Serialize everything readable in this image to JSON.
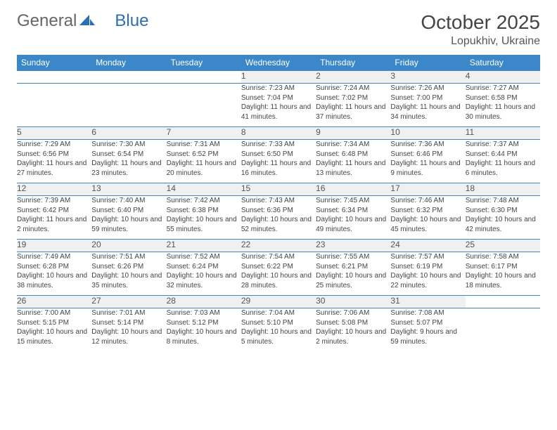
{
  "logo": {
    "part1": "General",
    "part2": "Blue"
  },
  "header": {
    "month_title": "October 2025",
    "location": "Lopukhiv, Ukraine"
  },
  "colors": {
    "header_bg": "#3b87c8",
    "header_text": "#ffffff",
    "daynum_bg": "#f0f0f0",
    "rule": "#3b87c8",
    "body_text": "#444444",
    "logo_blue": "#2a6fb5"
  },
  "fonts": {
    "title_size_pt": 21,
    "location_size_pt": 12,
    "dayheader_size_pt": 9,
    "daynum_size_pt": 9,
    "detail_size_pt": 7.5
  },
  "calendar": {
    "day_headers": [
      "Sunday",
      "Monday",
      "Tuesday",
      "Wednesday",
      "Thursday",
      "Friday",
      "Saturday"
    ],
    "weeks": [
      [
        null,
        null,
        null,
        {
          "n": "1",
          "sunrise": "7:23 AM",
          "sunset": "7:04 PM",
          "day_h": 11,
          "day_m": 41
        },
        {
          "n": "2",
          "sunrise": "7:24 AM",
          "sunset": "7:02 PM",
          "day_h": 11,
          "day_m": 37
        },
        {
          "n": "3",
          "sunrise": "7:26 AM",
          "sunset": "7:00 PM",
          "day_h": 11,
          "day_m": 34
        },
        {
          "n": "4",
          "sunrise": "7:27 AM",
          "sunset": "6:58 PM",
          "day_h": 11,
          "day_m": 30
        }
      ],
      [
        {
          "n": "5",
          "sunrise": "7:29 AM",
          "sunset": "6:56 PM",
          "day_h": 11,
          "day_m": 27
        },
        {
          "n": "6",
          "sunrise": "7:30 AM",
          "sunset": "6:54 PM",
          "day_h": 11,
          "day_m": 23
        },
        {
          "n": "7",
          "sunrise": "7:31 AM",
          "sunset": "6:52 PM",
          "day_h": 11,
          "day_m": 20
        },
        {
          "n": "8",
          "sunrise": "7:33 AM",
          "sunset": "6:50 PM",
          "day_h": 11,
          "day_m": 16
        },
        {
          "n": "9",
          "sunrise": "7:34 AM",
          "sunset": "6:48 PM",
          "day_h": 11,
          "day_m": 13
        },
        {
          "n": "10",
          "sunrise": "7:36 AM",
          "sunset": "6:46 PM",
          "day_h": 11,
          "day_m": 9
        },
        {
          "n": "11",
          "sunrise": "7:37 AM",
          "sunset": "6:44 PM",
          "day_h": 11,
          "day_m": 6
        }
      ],
      [
        {
          "n": "12",
          "sunrise": "7:39 AM",
          "sunset": "6:42 PM",
          "day_h": 11,
          "day_m": 2
        },
        {
          "n": "13",
          "sunrise": "7:40 AM",
          "sunset": "6:40 PM",
          "day_h": 10,
          "day_m": 59
        },
        {
          "n": "14",
          "sunrise": "7:42 AM",
          "sunset": "6:38 PM",
          "day_h": 10,
          "day_m": 55
        },
        {
          "n": "15",
          "sunrise": "7:43 AM",
          "sunset": "6:36 PM",
          "day_h": 10,
          "day_m": 52
        },
        {
          "n": "16",
          "sunrise": "7:45 AM",
          "sunset": "6:34 PM",
          "day_h": 10,
          "day_m": 49
        },
        {
          "n": "17",
          "sunrise": "7:46 AM",
          "sunset": "6:32 PM",
          "day_h": 10,
          "day_m": 45
        },
        {
          "n": "18",
          "sunrise": "7:48 AM",
          "sunset": "6:30 PM",
          "day_h": 10,
          "day_m": 42
        }
      ],
      [
        {
          "n": "19",
          "sunrise": "7:49 AM",
          "sunset": "6:28 PM",
          "day_h": 10,
          "day_m": 38
        },
        {
          "n": "20",
          "sunrise": "7:51 AM",
          "sunset": "6:26 PM",
          "day_h": 10,
          "day_m": 35
        },
        {
          "n": "21",
          "sunrise": "7:52 AM",
          "sunset": "6:24 PM",
          "day_h": 10,
          "day_m": 32
        },
        {
          "n": "22",
          "sunrise": "7:54 AM",
          "sunset": "6:22 PM",
          "day_h": 10,
          "day_m": 28
        },
        {
          "n": "23",
          "sunrise": "7:55 AM",
          "sunset": "6:21 PM",
          "day_h": 10,
          "day_m": 25
        },
        {
          "n": "24",
          "sunrise": "7:57 AM",
          "sunset": "6:19 PM",
          "day_h": 10,
          "day_m": 22
        },
        {
          "n": "25",
          "sunrise": "7:58 AM",
          "sunset": "6:17 PM",
          "day_h": 10,
          "day_m": 18
        }
      ],
      [
        {
          "n": "26",
          "sunrise": "7:00 AM",
          "sunset": "5:15 PM",
          "day_h": 10,
          "day_m": 15
        },
        {
          "n": "27",
          "sunrise": "7:01 AM",
          "sunset": "5:14 PM",
          "day_h": 10,
          "day_m": 12
        },
        {
          "n": "28",
          "sunrise": "7:03 AM",
          "sunset": "5:12 PM",
          "day_h": 10,
          "day_m": 8
        },
        {
          "n": "29",
          "sunrise": "7:04 AM",
          "sunset": "5:10 PM",
          "day_h": 10,
          "day_m": 5
        },
        {
          "n": "30",
          "sunrise": "7:06 AM",
          "sunset": "5:08 PM",
          "day_h": 10,
          "day_m": 2
        },
        {
          "n": "31",
          "sunrise": "7:08 AM",
          "sunset": "5:07 PM",
          "day_h": 9,
          "day_m": 59
        },
        null
      ]
    ]
  },
  "labels": {
    "sunrise": "Sunrise: ",
    "sunset": "Sunset: ",
    "daylight": "Daylight: ",
    "hours_and": " hours and ",
    "minutes": " minutes."
  }
}
